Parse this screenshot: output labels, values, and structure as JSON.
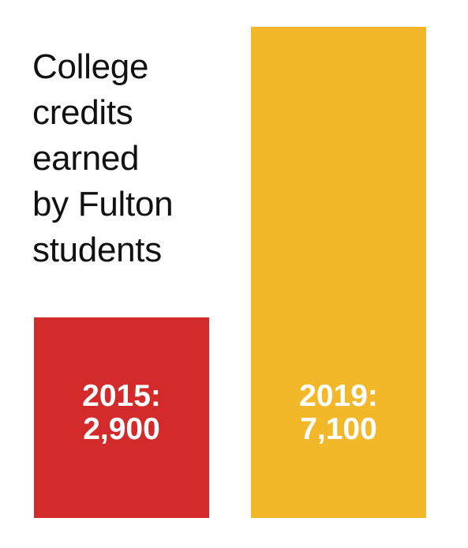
{
  "chart_data": {
    "type": "bar",
    "title": "College\ncredits\nearned\nby Fulton\nstudents",
    "xlabel": "",
    "ylabel": "",
    "categories": [
      "2015",
      "2019"
    ],
    "values": [
      2900,
      7100
    ],
    "labels": [
      [
        "2015:",
        "2,900"
      ],
      [
        "2019:",
        "7,100"
      ]
    ],
    "colors": [
      "#d32a2b",
      "#f3b82a"
    ],
    "ylim": [
      0,
      7100
    ],
    "grid": false,
    "legend": "none"
  }
}
